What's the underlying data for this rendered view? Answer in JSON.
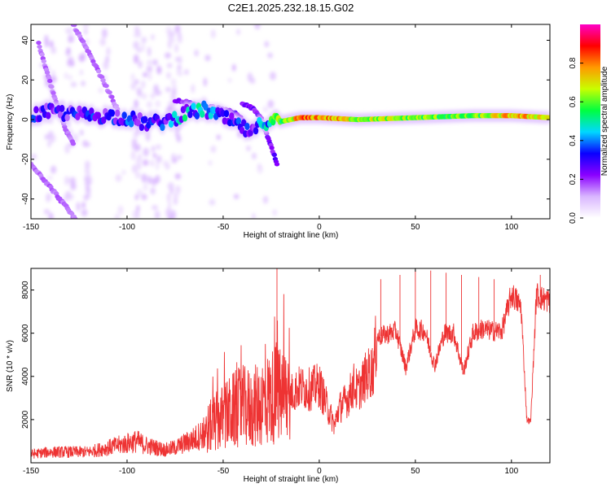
{
  "figure": {
    "title": "C2E1.2025.232.18.15.G02"
  },
  "colorbar": {
    "label": "Normalized spectral amplitude",
    "ticks": [
      "0.0",
      "0.2",
      "0.4",
      "0.6",
      "0.8"
    ],
    "stops": [
      "#ffffff",
      "#d9b6ff",
      "#8a00ff",
      "#0a00ff",
      "#00d8ff",
      "#00ff40",
      "#c8ff00",
      "#ff9900",
      "#ff0000",
      "#ff00c8"
    ]
  },
  "chart_data": [
    {
      "type": "heatmap",
      "title": "",
      "xlabel": "Height of straight line (km)",
      "ylabel": "Frequency (Hz)",
      "xlim": [
        -150,
        120
      ],
      "ylim": [
        -50,
        48
      ],
      "xticks": [
        "-150",
        "-100",
        "-50",
        "0",
        "50",
        "100"
      ],
      "yticks": [
        "-40",
        "-20",
        "0",
        "20",
        "40"
      ],
      "ridge": {
        "x": [
          -150,
          -140,
          -130,
          -120,
          -110,
          -100,
          -90,
          -80,
          -70,
          -60,
          -50,
          -40,
          -35,
          -30,
          -25,
          -20,
          -10,
          0,
          20,
          50,
          80,
          100,
          120
        ],
        "y": [
          2,
          4,
          3,
          2,
          2,
          1,
          -2,
          -1,
          3,
          5,
          1,
          -4,
          -7,
          -2,
          0,
          -1,
          1,
          1,
          0,
          1,
          2,
          2,
          1
        ],
        "amplitude": [
          0.35,
          0.3,
          0.3,
          0.35,
          0.3,
          0.35,
          0.3,
          0.35,
          0.45,
          0.45,
          0.4,
          0.35,
          0.3,
          0.4,
          0.5,
          0.6,
          0.9,
          0.9,
          0.75,
          0.7,
          0.65,
          0.85,
          0.8
        ]
      },
      "branches": [
        {
          "x": [
            -75,
            -65,
            -55,
            -45,
            -40,
            -36
          ],
          "y": [
            10,
            8,
            6,
            4,
            0,
            -5
          ]
        },
        {
          "x": [
            -40,
            -35,
            -30,
            -27,
            -22
          ],
          "y": [
            8,
            6,
            0,
            -8,
            -22
          ]
        },
        {
          "x": [
            -146,
            -138,
            -132,
            -128
          ],
          "y": [
            38,
            12,
            -5,
            -12
          ]
        },
        {
          "x": [
            -150,
            -145,
            -135,
            -127
          ],
          "y": [
            -22,
            -28,
            -40,
            -50
          ]
        },
        {
          "x": [
            -128,
            -118,
            -110,
            -105
          ],
          "y": [
            48,
            30,
            15,
            5
          ]
        }
      ]
    },
    {
      "type": "line",
      "title": "",
      "xlabel": "Height of straight line (km)",
      "ylabel": "SNR (10 * v/v)",
      "xlim": [
        -150,
        120
      ],
      "ylim": [
        0,
        9000
      ],
      "xticks": [
        "-150",
        "-100",
        "-50",
        "0",
        "50",
        "100"
      ],
      "yticks": [
        "2000",
        "4000",
        "6000",
        "8000"
      ],
      "color": "#ee3333",
      "series": [
        {
          "name": "SNR",
          "x": [
            -150,
            -140,
            -130,
            -120,
            -110,
            -105,
            -100,
            -95,
            -90,
            -85,
            -80,
            -75,
            -70,
            -65,
            -60,
            -55,
            -50,
            -45,
            -40,
            -35,
            -30,
            -25,
            -22,
            -20,
            -15,
            -10,
            -5,
            0,
            5,
            8,
            10,
            15,
            18,
            20,
            25,
            28,
            30,
            40,
            45,
            50,
            55,
            60,
            65,
            70,
            75,
            80,
            85,
            90,
            95,
            100,
            102,
            105,
            108,
            110,
            113,
            116,
            120
          ],
          "y": [
            400,
            500,
            500,
            500,
            700,
            800,
            900,
            1000,
            800,
            700,
            600,
            700,
            900,
            1100,
            1400,
            1800,
            2100,
            2400,
            2600,
            2500,
            2800,
            3000,
            3300,
            3000,
            3200,
            3500,
            3400,
            3600,
            2400,
            1700,
            2500,
            3000,
            3600,
            3300,
            4100,
            4300,
            5800,
            6100,
            4400,
            6200,
            6100,
            4500,
            6000,
            6000,
            4200,
            6000,
            6200,
            6100,
            6100,
            7800,
            7600,
            7200,
            2000,
            1900,
            7800,
            7600,
            7500
          ]
        }
      ]
    }
  ]
}
